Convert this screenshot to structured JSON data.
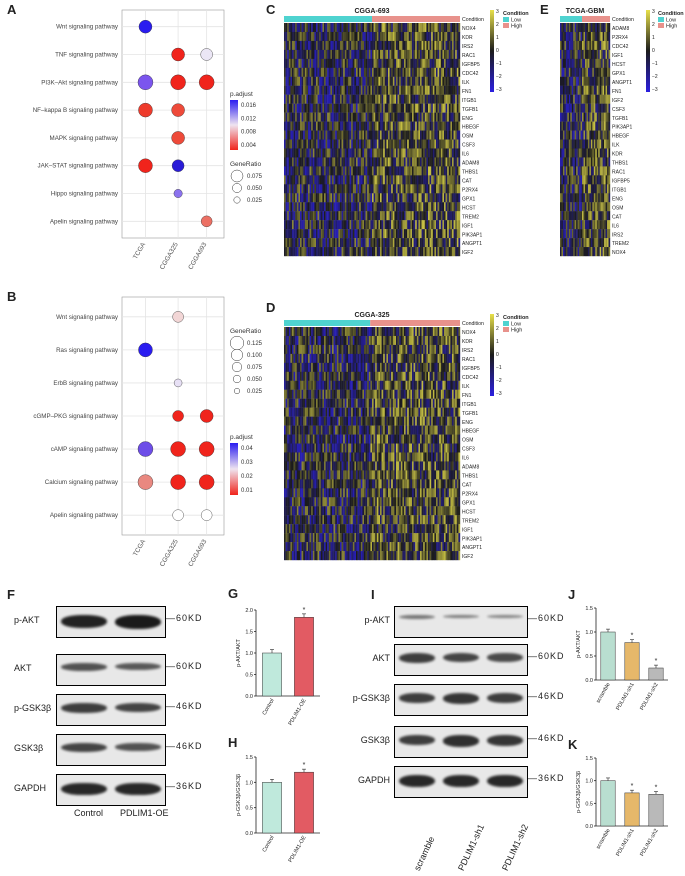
{
  "panels": {
    "A": "A",
    "B": "B",
    "C": "C",
    "D": "D",
    "E": "E",
    "F": "F",
    "G": "G",
    "H": "H",
    "I": "I",
    "J": "J",
    "K": "K"
  },
  "colors": {
    "low": "#4fd3d0",
    "high": "#e8928c",
    "bar_control": "#bfe9dc",
    "bar_oe": "#e25b63",
    "bar_scramble": "#b9ded0",
    "bar_sh1": "#e6b86a",
    "bar_sh2": "#b9b9b9"
  },
  "dotA": {
    "pathways": [
      "Wnt signaling pathway",
      "TNF signaling pathway",
      "PI3K–Akt signaling pathway",
      "NF–kappa B signaling pathway",
      "MAPK signaling pathway",
      "JAK–STAT signaling pathway",
      "Hippo signaling pathway",
      "Apelin signaling pathway"
    ],
    "groups": [
      "TCGA",
      "CGGA325",
      "CGGA693"
    ],
    "legend_padj_title": "p.adjust",
    "legend_padj_ticks": [
      "0.016",
      "0.012",
      "0.008",
      "0.004"
    ],
    "legend_gr_title": "GeneRatio",
    "legend_gr_ticks": [
      "0.075",
      "0.050",
      "0.025"
    ]
  },
  "dotB": {
    "pathways": [
      "Wnt signaling pathway",
      "Ras signaling pathway",
      "ErbB signaling pathway",
      "cGMP–PKG signaling pathway",
      "cAMP signaling pathway",
      "Calcium signaling pathway",
      "Apelin signaling pathway"
    ],
    "groups": [
      "TCGA",
      "CGGA325",
      "CGGA693"
    ],
    "legend_gr_title": "GeneRatio",
    "legend_gr_ticks": [
      "0.125",
      "0.100",
      "0.075",
      "0.050",
      "0.025"
    ],
    "legend_padj_title": "p.adjust",
    "legend_padj_ticks": [
      "0.04",
      "0.03",
      "0.02",
      "0.01"
    ]
  },
  "heatC": {
    "title": "CGGA-693",
    "condition_label": "Condition",
    "scale_ticks": [
      "3",
      "2",
      "1",
      "0",
      "−1",
      "−2",
      "−3"
    ],
    "legend_title": "Condition",
    "legend_low": "Low",
    "legend_high": "High",
    "genes": [
      "NOX4",
      "KDR",
      "IRS2",
      "RAC1",
      "IGFBP5",
      "CDC42",
      "ILK",
      "FN1",
      "ITGB1",
      "TGFB1",
      "ENG",
      "HBEGF",
      "OSM",
      "CSF3",
      "IL6",
      "ADAM8",
      "THBS1",
      "CAT",
      "P2RX4",
      "GPX1",
      "HCST",
      "TREM2",
      "IGF1",
      "PIK3AP1",
      "ANGPT1",
      "IGF2"
    ]
  },
  "heatD": {
    "title": "CGGA-325",
    "condition_label": "Condition",
    "scale_ticks": [
      "3",
      "2",
      "1",
      "0",
      "−1",
      "−2",
      "−3"
    ],
    "legend_title": "Condition",
    "legend_low": "Low",
    "legend_high": "High",
    "genes": [
      "NOX4",
      "KDR",
      "IRS2",
      "RAC1",
      "IGFBP5",
      "CDC42",
      "ILK",
      "FN1",
      "ITGB1",
      "TGFB1",
      "ENG",
      "HBEGF",
      "OSM",
      "CSF3",
      "IL6",
      "ADAM8",
      "THBS1",
      "CAT",
      "P2RX4",
      "GPX1",
      "HCST",
      "TREM2",
      "IGF1",
      "PIK3AP1",
      "ANGPT1",
      "IGF2"
    ]
  },
  "heatE": {
    "title": "TCGA-GBM",
    "condition_label": "Condition",
    "scale_ticks": [
      "3",
      "2",
      "1",
      "0",
      "−1",
      "−2",
      "−3"
    ],
    "legend_title": "Condition",
    "legend_low": "Low",
    "legend_high": "High",
    "genes": [
      "ADAM8",
      "P2RX4",
      "CDC42",
      "IGF1",
      "HCST",
      "GPX1",
      "ANGPT1",
      "FN1",
      "IGF2",
      "CSF3",
      "TGFB1",
      "PIK3AP1",
      "HBEGF",
      "ILK",
      "KDR",
      "THBS1",
      "RAC1",
      "IGFBP5",
      "ITGB1",
      "ENG",
      "OSM",
      "CAT",
      "IL6",
      "IRS2",
      "TREM2",
      "NOX4"
    ]
  },
  "blotF": {
    "rows": [
      {
        "label": "p-AKT",
        "kd": "60KD"
      },
      {
        "label": "AKT",
        "kd": "60KD"
      },
      {
        "label": "p-GSK3β",
        "kd": "46KD"
      },
      {
        "label": "GSK3β",
        "kd": "46KD"
      },
      {
        "label": "GAPDH",
        "kd": "36KD"
      }
    ],
    "lanes": [
      "Control",
      "PDLIM1-OE"
    ]
  },
  "blotI": {
    "rows": [
      {
        "label": "p-AKT",
        "kd": "60KD"
      },
      {
        "label": "AKT",
        "kd": "60KD"
      },
      {
        "label": "p-GSK3β",
        "kd": "46KD"
      },
      {
        "label": "GSK3β",
        "kd": "46KD"
      },
      {
        "label": "GAPDH",
        "kd": "36KD"
      }
    ],
    "lanes": [
      "scramble",
      "PDLIM1-sh1",
      "PDLIM1-sh2"
    ]
  },
  "barG": {
    "ylabel": "p-AKT/AKT",
    "yticks": [
      "0.0",
      "0.5",
      "1.0",
      "1.5",
      "2.0"
    ],
    "categories": [
      "Control",
      "PDLIM1-OE"
    ],
    "values": [
      1.0,
      1.83
    ],
    "sig": [
      "",
      "*"
    ]
  },
  "barH": {
    "ylabel": "p-GSK3β/GSK3β",
    "yticks": [
      "0.0",
      "0.5",
      "1.0",
      "1.5"
    ],
    "categories": [
      "Control",
      "PDLIM1-OE"
    ],
    "values": [
      1.0,
      1.2
    ],
    "sig": [
      "",
      "*"
    ]
  },
  "barJ": {
    "ylabel": "p-AKT/AKT",
    "yticks": [
      "0.0",
      "0.5",
      "1.0",
      "1.5"
    ],
    "categories": [
      "scramble",
      "PDLIM1-sh1",
      "PDLIM1-sh2"
    ],
    "values": [
      1.0,
      0.78,
      0.25
    ],
    "sig": [
      "",
      "*",
      "*"
    ]
  },
  "barK": {
    "ylabel": "p-GSK3β/GSK3β",
    "yticks": [
      "0.0",
      "0.5",
      "1.0",
      "1.5"
    ],
    "categories": [
      "scramble",
      "PDLIM1-sh1",
      "PDLIM1-sh2"
    ],
    "values": [
      1.0,
      0.73,
      0.7
    ],
    "sig": [
      "",
      "*",
      "*"
    ]
  }
}
